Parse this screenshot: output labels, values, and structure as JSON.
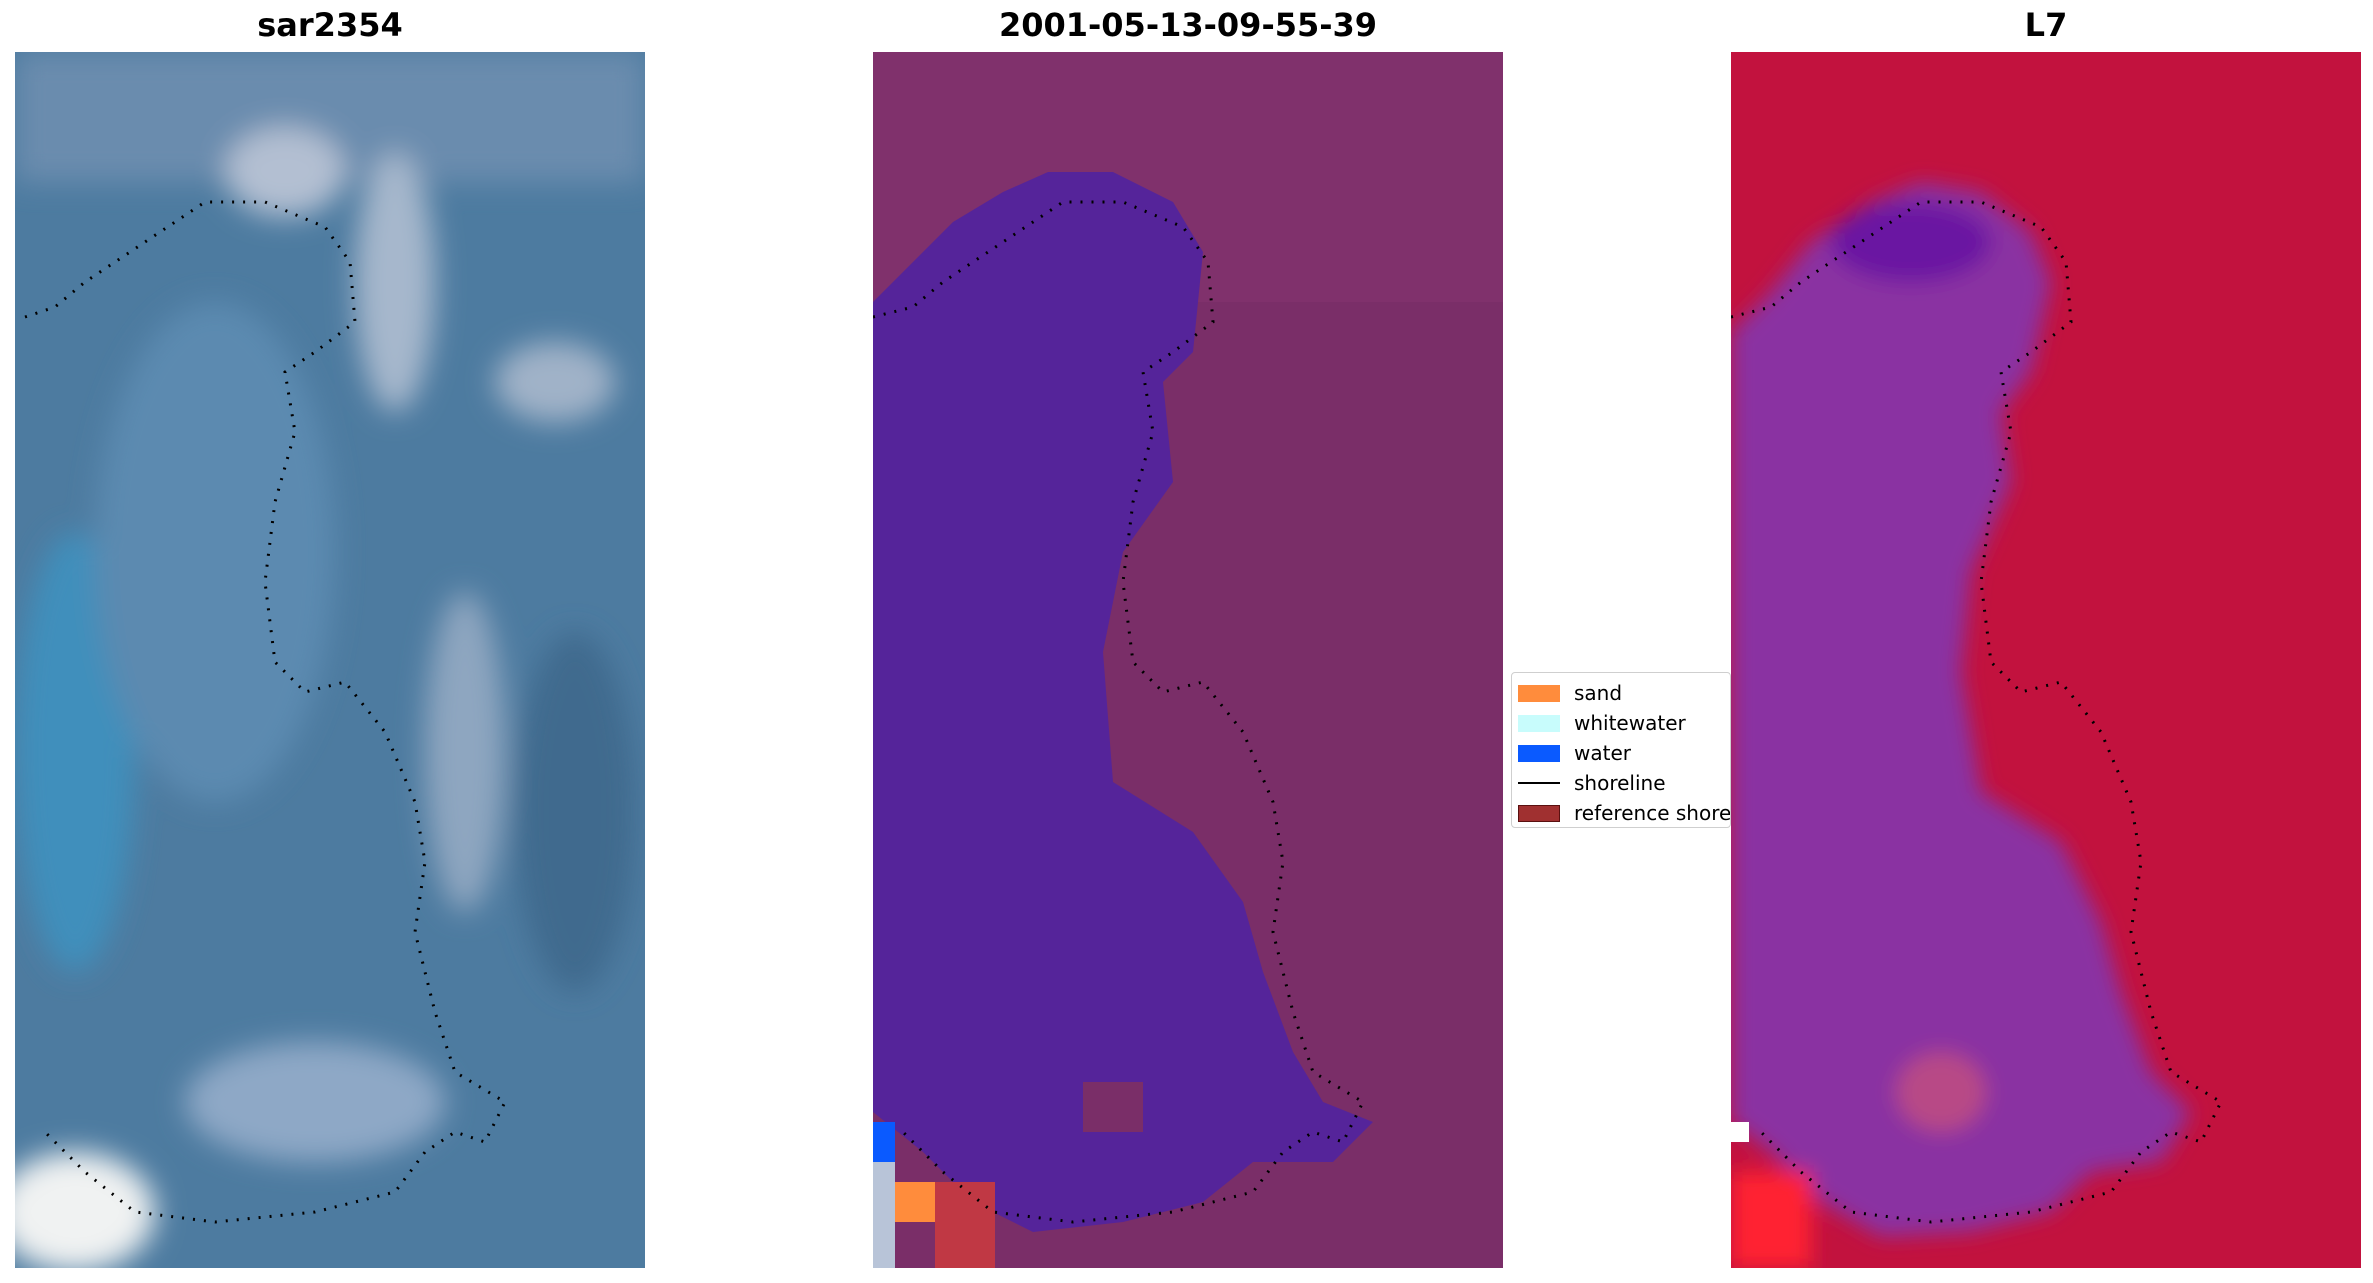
{
  "panels": [
    {
      "title": "sar2354"
    },
    {
      "title": "2001-05-13-09-55-39"
    },
    {
      "title": "L7"
    }
  ],
  "legend": {
    "items": [
      {
        "label": "sand",
        "color": "#ff8c3c",
        "kind": "patch"
      },
      {
        "label": "whitewater",
        "color": "#c8fcfc",
        "kind": "patch"
      },
      {
        "label": "water",
        "color": "#0a5aff",
        "kind": "patch"
      },
      {
        "label": "shoreline",
        "color": "#000000",
        "kind": "line"
      },
      {
        "label": "reference shoreline",
        "color": "#a03030",
        "kind": "patch"
      }
    ]
  },
  "colors": {
    "rgb_water": "#4a7aa0",
    "classified_land": "#7a2e68",
    "classified_water": "#55249a",
    "falsecolor_land": "#c2123e",
    "falsecolor_water": "#8a30a2"
  }
}
